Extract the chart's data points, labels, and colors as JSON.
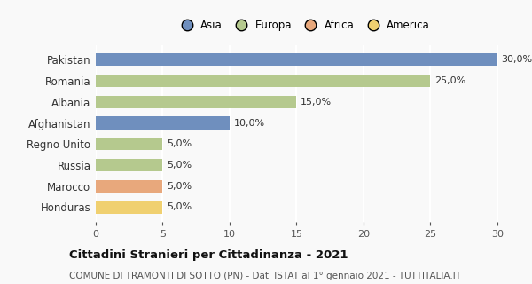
{
  "countries": [
    "Pakistan",
    "Romania",
    "Albania",
    "Afghanistan",
    "Regno Unito",
    "Russia",
    "Marocco",
    "Honduras"
  ],
  "values": [
    30.0,
    25.0,
    15.0,
    10.0,
    5.0,
    5.0,
    5.0,
    5.0
  ],
  "colors": [
    "#6f8fbe",
    "#b5c98e",
    "#b5c98e",
    "#6f8fbe",
    "#b5c98e",
    "#b5c98e",
    "#e8a87c",
    "#f0d070"
  ],
  "legend": [
    {
      "label": "Asia",
      "color": "#6f8fbe"
    },
    {
      "label": "Europa",
      "color": "#b5c98e"
    },
    {
      "label": "Africa",
      "color": "#e8a87c"
    },
    {
      "label": "America",
      "color": "#f0d070"
    }
  ],
  "xlim": [
    0,
    31
  ],
  "xticks": [
    0,
    5,
    10,
    15,
    20,
    25,
    30
  ],
  "title": "Cittadini Stranieri per Cittadinanza - 2021",
  "subtitle": "COMUNE DI TRAMONTI DI SOTTO (PN) - Dati ISTAT al 1° gennaio 2021 - TUTTITALIA.IT",
  "bar_height": 0.6,
  "background_color": "#f9f9f9",
  "grid_color": "#ffffff",
  "title_fontsize": 9.5,
  "subtitle_fontsize": 7.5,
  "bar_label_fontsize": 8,
  "ytick_fontsize": 8.5,
  "xtick_fontsize": 8,
  "legend_fontsize": 8.5
}
